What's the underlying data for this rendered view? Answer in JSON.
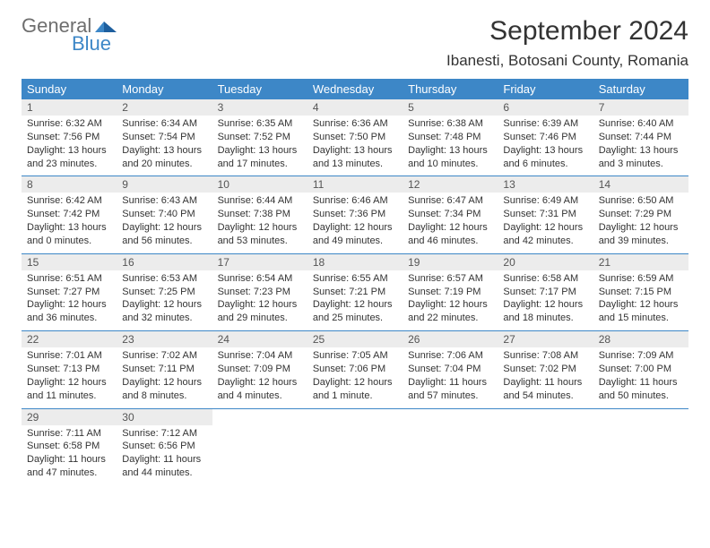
{
  "logo": {
    "general": "General",
    "blue": "Blue"
  },
  "header": {
    "month_title": "September 2024",
    "location": "Ibanesti, Botosani County, Romania"
  },
  "calendar": {
    "colors": {
      "header_bg": "#3d87c7",
      "header_text": "#ffffff",
      "daynum_bg": "#ececec",
      "row_divider": "#3d87c7",
      "background": "#ffffff",
      "text": "#333333"
    },
    "weekdays": [
      "Sunday",
      "Monday",
      "Tuesday",
      "Wednesday",
      "Thursday",
      "Friday",
      "Saturday"
    ],
    "weeks": [
      [
        {
          "day": "1",
          "sunrise": "Sunrise: 6:32 AM",
          "sunset": "Sunset: 7:56 PM",
          "daylight1": "Daylight: 13 hours",
          "daylight2": "and 23 minutes."
        },
        {
          "day": "2",
          "sunrise": "Sunrise: 6:34 AM",
          "sunset": "Sunset: 7:54 PM",
          "daylight1": "Daylight: 13 hours",
          "daylight2": "and 20 minutes."
        },
        {
          "day": "3",
          "sunrise": "Sunrise: 6:35 AM",
          "sunset": "Sunset: 7:52 PM",
          "daylight1": "Daylight: 13 hours",
          "daylight2": "and 17 minutes."
        },
        {
          "day": "4",
          "sunrise": "Sunrise: 6:36 AM",
          "sunset": "Sunset: 7:50 PM",
          "daylight1": "Daylight: 13 hours",
          "daylight2": "and 13 minutes."
        },
        {
          "day": "5",
          "sunrise": "Sunrise: 6:38 AM",
          "sunset": "Sunset: 7:48 PM",
          "daylight1": "Daylight: 13 hours",
          "daylight2": "and 10 minutes."
        },
        {
          "day": "6",
          "sunrise": "Sunrise: 6:39 AM",
          "sunset": "Sunset: 7:46 PM",
          "daylight1": "Daylight: 13 hours",
          "daylight2": "and 6 minutes."
        },
        {
          "day": "7",
          "sunrise": "Sunrise: 6:40 AM",
          "sunset": "Sunset: 7:44 PM",
          "daylight1": "Daylight: 13 hours",
          "daylight2": "and 3 minutes."
        }
      ],
      [
        {
          "day": "8",
          "sunrise": "Sunrise: 6:42 AM",
          "sunset": "Sunset: 7:42 PM",
          "daylight1": "Daylight: 13 hours",
          "daylight2": "and 0 minutes."
        },
        {
          "day": "9",
          "sunrise": "Sunrise: 6:43 AM",
          "sunset": "Sunset: 7:40 PM",
          "daylight1": "Daylight: 12 hours",
          "daylight2": "and 56 minutes."
        },
        {
          "day": "10",
          "sunrise": "Sunrise: 6:44 AM",
          "sunset": "Sunset: 7:38 PM",
          "daylight1": "Daylight: 12 hours",
          "daylight2": "and 53 minutes."
        },
        {
          "day": "11",
          "sunrise": "Sunrise: 6:46 AM",
          "sunset": "Sunset: 7:36 PM",
          "daylight1": "Daylight: 12 hours",
          "daylight2": "and 49 minutes."
        },
        {
          "day": "12",
          "sunrise": "Sunrise: 6:47 AM",
          "sunset": "Sunset: 7:34 PM",
          "daylight1": "Daylight: 12 hours",
          "daylight2": "and 46 minutes."
        },
        {
          "day": "13",
          "sunrise": "Sunrise: 6:49 AM",
          "sunset": "Sunset: 7:31 PM",
          "daylight1": "Daylight: 12 hours",
          "daylight2": "and 42 minutes."
        },
        {
          "day": "14",
          "sunrise": "Sunrise: 6:50 AM",
          "sunset": "Sunset: 7:29 PM",
          "daylight1": "Daylight: 12 hours",
          "daylight2": "and 39 minutes."
        }
      ],
      [
        {
          "day": "15",
          "sunrise": "Sunrise: 6:51 AM",
          "sunset": "Sunset: 7:27 PM",
          "daylight1": "Daylight: 12 hours",
          "daylight2": "and 36 minutes."
        },
        {
          "day": "16",
          "sunrise": "Sunrise: 6:53 AM",
          "sunset": "Sunset: 7:25 PM",
          "daylight1": "Daylight: 12 hours",
          "daylight2": "and 32 minutes."
        },
        {
          "day": "17",
          "sunrise": "Sunrise: 6:54 AM",
          "sunset": "Sunset: 7:23 PM",
          "daylight1": "Daylight: 12 hours",
          "daylight2": "and 29 minutes."
        },
        {
          "day": "18",
          "sunrise": "Sunrise: 6:55 AM",
          "sunset": "Sunset: 7:21 PM",
          "daylight1": "Daylight: 12 hours",
          "daylight2": "and 25 minutes."
        },
        {
          "day": "19",
          "sunrise": "Sunrise: 6:57 AM",
          "sunset": "Sunset: 7:19 PM",
          "daylight1": "Daylight: 12 hours",
          "daylight2": "and 22 minutes."
        },
        {
          "day": "20",
          "sunrise": "Sunrise: 6:58 AM",
          "sunset": "Sunset: 7:17 PM",
          "daylight1": "Daylight: 12 hours",
          "daylight2": "and 18 minutes."
        },
        {
          "day": "21",
          "sunrise": "Sunrise: 6:59 AM",
          "sunset": "Sunset: 7:15 PM",
          "daylight1": "Daylight: 12 hours",
          "daylight2": "and 15 minutes."
        }
      ],
      [
        {
          "day": "22",
          "sunrise": "Sunrise: 7:01 AM",
          "sunset": "Sunset: 7:13 PM",
          "daylight1": "Daylight: 12 hours",
          "daylight2": "and 11 minutes."
        },
        {
          "day": "23",
          "sunrise": "Sunrise: 7:02 AM",
          "sunset": "Sunset: 7:11 PM",
          "daylight1": "Daylight: 12 hours",
          "daylight2": "and 8 minutes."
        },
        {
          "day": "24",
          "sunrise": "Sunrise: 7:04 AM",
          "sunset": "Sunset: 7:09 PM",
          "daylight1": "Daylight: 12 hours",
          "daylight2": "and 4 minutes."
        },
        {
          "day": "25",
          "sunrise": "Sunrise: 7:05 AM",
          "sunset": "Sunset: 7:06 PM",
          "daylight1": "Daylight: 12 hours",
          "daylight2": "and 1 minute."
        },
        {
          "day": "26",
          "sunrise": "Sunrise: 7:06 AM",
          "sunset": "Sunset: 7:04 PM",
          "daylight1": "Daylight: 11 hours",
          "daylight2": "and 57 minutes."
        },
        {
          "day": "27",
          "sunrise": "Sunrise: 7:08 AM",
          "sunset": "Sunset: 7:02 PM",
          "daylight1": "Daylight: 11 hours",
          "daylight2": "and 54 minutes."
        },
        {
          "day": "28",
          "sunrise": "Sunrise: 7:09 AM",
          "sunset": "Sunset: 7:00 PM",
          "daylight1": "Daylight: 11 hours",
          "daylight2": "and 50 minutes."
        }
      ],
      [
        {
          "day": "29",
          "sunrise": "Sunrise: 7:11 AM",
          "sunset": "Sunset: 6:58 PM",
          "daylight1": "Daylight: 11 hours",
          "daylight2": "and 47 minutes."
        },
        {
          "day": "30",
          "sunrise": "Sunrise: 7:12 AM",
          "sunset": "Sunset: 6:56 PM",
          "daylight1": "Daylight: 11 hours",
          "daylight2": "and 44 minutes."
        },
        null,
        null,
        null,
        null,
        null
      ]
    ]
  }
}
